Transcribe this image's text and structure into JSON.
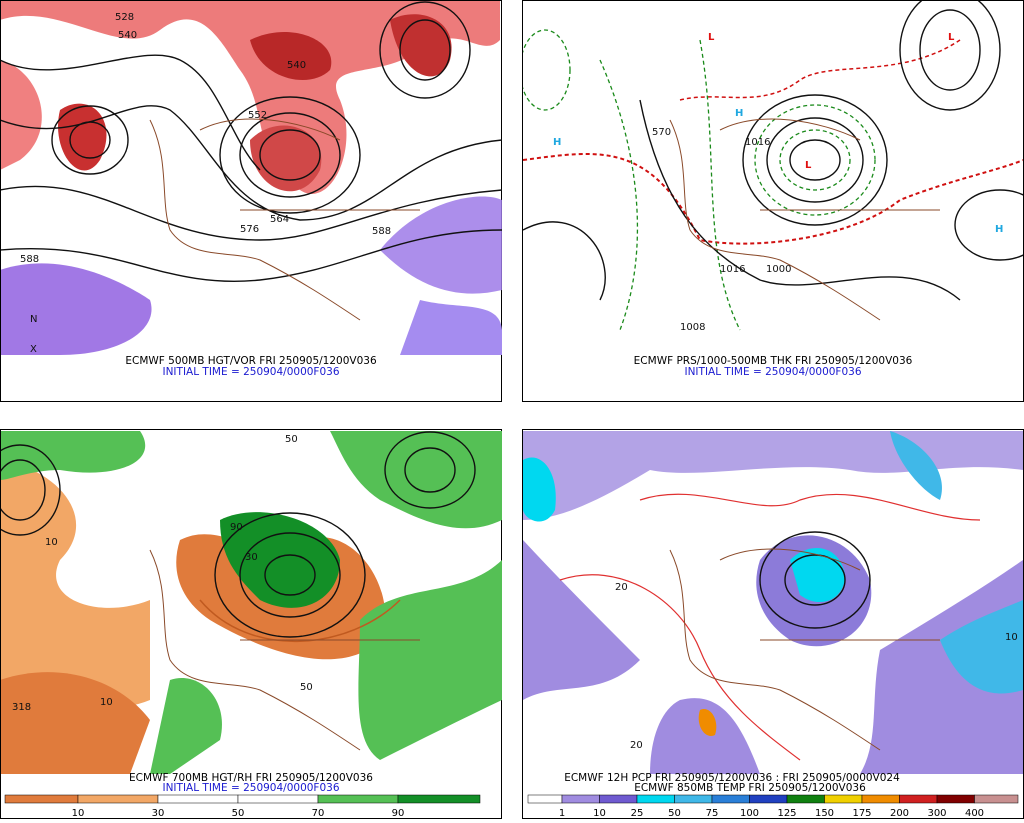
{
  "panels": [
    {
      "caption": [
        "ECMWF 500MB HGT/VOR FRI 250905/1200V036",
        "INITIAL TIME = 250904/0000F036"
      ],
      "labels": [
        "528",
        "540",
        "540",
        "552",
        "564",
        "576",
        "588",
        "588",
        "N",
        "X"
      ]
    },
    {
      "caption": [
        "ECMWF PRS/1000-500MB THK FRI 250905/1200V036",
        "INITIAL TIME = 250904/0000F036"
      ],
      "labels": [
        "H",
        "H",
        "H",
        "L",
        "L",
        "L",
        "1016",
        "1008",
        "1000",
        "1016",
        "570"
      ]
    },
    {
      "caption": [
        "ECMWF 700MB HGT/RH FRI 250905/1200V036",
        "INITIAL TIME = 250904/0000F036"
      ],
      "labels": [
        "50",
        "10",
        "10",
        "30",
        "318",
        "50",
        "90"
      ],
      "colorbar": {
        "ticks": [
          10,
          30,
          50,
          70,
          90
        ],
        "colors": [
          "#e07b3c",
          "#f2a766",
          "#ffffff",
          "#ffffff",
          "#55c055",
          "#138f27"
        ]
      }
    },
    {
      "caption": [
        "ECMWF 12H PCP FRI 250905/1200V036 : FRI 250905/0000V024",
        "ECMWF 850MB TEMP FRI 250905/1200V036"
      ],
      "labels": [
        "20",
        "10",
        "20"
      ],
      "colorbar": {
        "ticks": [
          1,
          10,
          25,
          50,
          75,
          100,
          125,
          150,
          175,
          200,
          300,
          400
        ],
        "colors": [
          "#ffffff",
          "#a08ce0",
          "#6f5ad0",
          "#00d8f0",
          "#40b8e8",
          "#2a7fd8",
          "#2040c0",
          "#108010",
          "#f0d000",
          "#f08c00",
          "#d02020",
          "#800000",
          "#c89090"
        ]
      }
    }
  ]
}
